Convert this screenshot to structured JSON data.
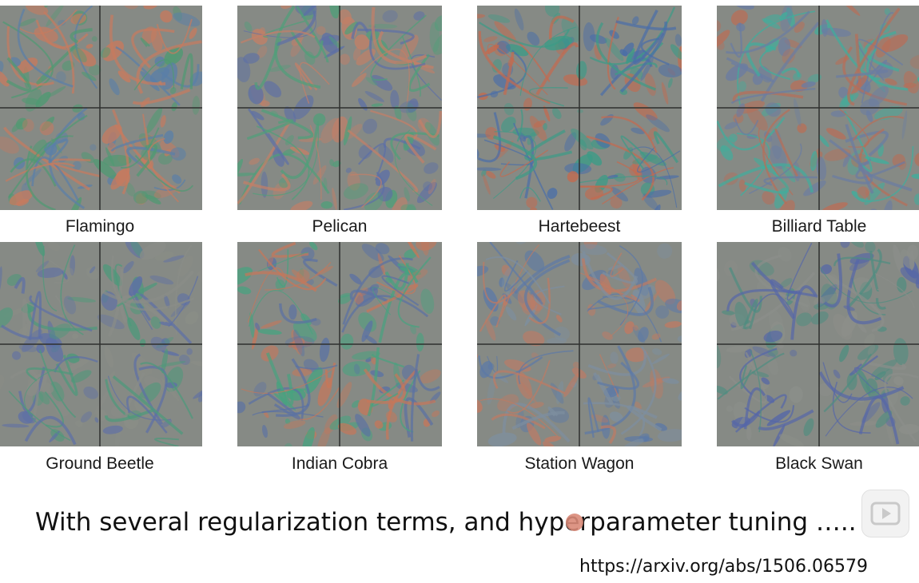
{
  "figure": {
    "classes": [
      {
        "label": "Flamingo",
        "icon": "flamingo-visualization",
        "colors": [
          "#c77a5e",
          "#5a7fa8",
          "#4f9a72"
        ]
      },
      {
        "label": "Pelican",
        "icon": "pelican-visualization",
        "colors": [
          "#5c6fa6",
          "#4f9f79",
          "#c47f66"
        ]
      },
      {
        "label": "Hartebeest",
        "icon": "hartebeest-visualization",
        "colors": [
          "#c46a4e",
          "#4a6ea8",
          "#3c9b86"
        ]
      },
      {
        "label": "Billiard Table",
        "icon": "billiard-table-visualization",
        "colors": [
          "#3fae9c",
          "#b86e57",
          "#6a7ca3"
        ]
      },
      {
        "label": "Ground Beetle",
        "icon": "ground-beetle-visualization",
        "colors": [
          "#5d6fa7",
          "#8a8d87",
          "#4b9a7a"
        ]
      },
      {
        "label": "Indian Cobra",
        "icon": "indian-cobra-visualization",
        "colors": [
          "#c87658",
          "#47a37f",
          "#5a71a4"
        ]
      },
      {
        "label": "Station Wagon",
        "icon": "station-wagon-visualization",
        "colors": [
          "#5c79a7",
          "#bf7a63",
          "#7d8fa0"
        ]
      },
      {
        "label": "Black Swan",
        "icon": "black-swan-visualization",
        "colors": [
          "#5566a8",
          "#8c8f8a",
          "#4e8d80"
        ]
      }
    ]
  },
  "footer": {
    "text": "With several regularization terms, and hyperparameter tuning …..",
    "url": "https://arxiv.org/abs/1506.06579"
  },
  "overlay": {
    "play_icon": "play-icon"
  }
}
